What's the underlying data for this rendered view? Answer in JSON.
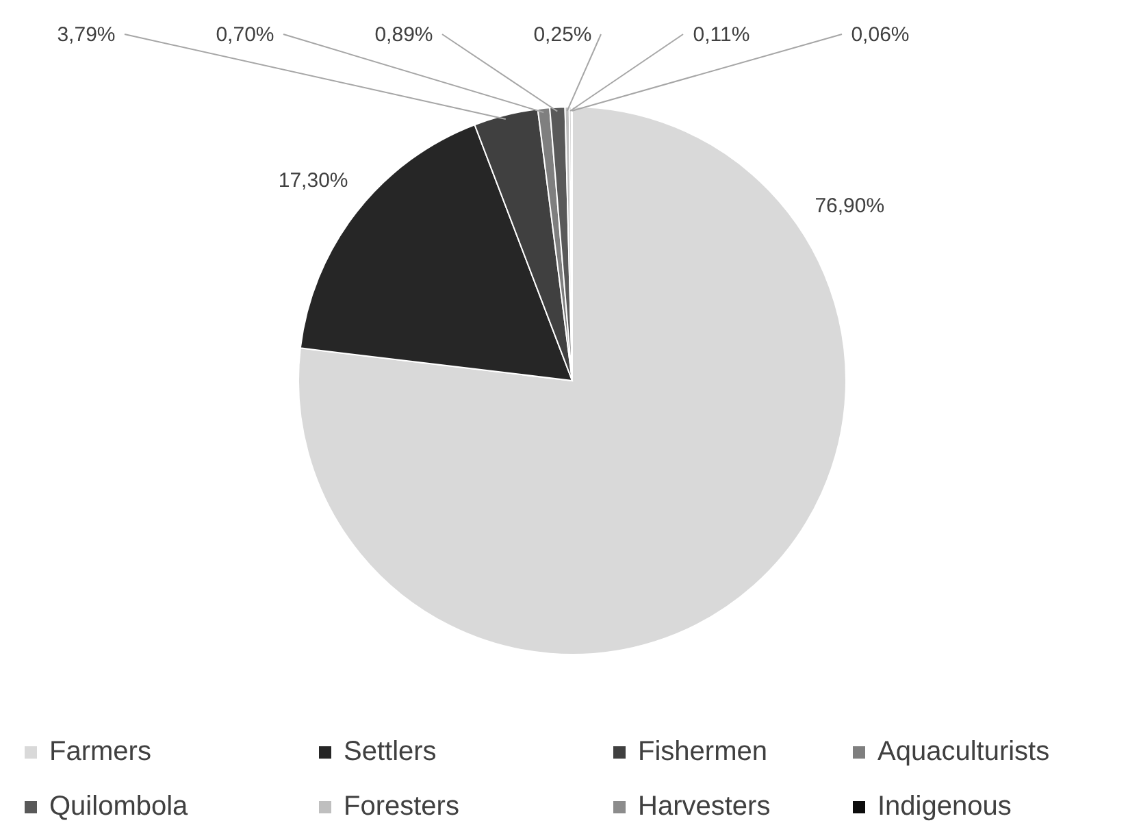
{
  "chart_data": {
    "type": "pie",
    "categories": [
      "Farmers",
      "Settlers",
      "Fishermen",
      "Aquaculturists",
      "Quilombola",
      "Foresters",
      "Harvesters",
      "Indigenous"
    ],
    "values": [
      76.9,
      17.3,
      3.79,
      0.7,
      0.89,
      0.25,
      0.11,
      0.06
    ],
    "value_labels": [
      "76,90%",
      "17,30%",
      "3,79%",
      "0,70%",
      "0,89%",
      "0,25%",
      "0,11%",
      "0,06%"
    ],
    "colors": [
      "#d9d9d9",
      "#262626",
      "#404040",
      "#7f7f7f",
      "#595959",
      "#bfbfbf",
      "#8c8c8c",
      "#0d0d0d"
    ],
    "legend": "bottom"
  }
}
